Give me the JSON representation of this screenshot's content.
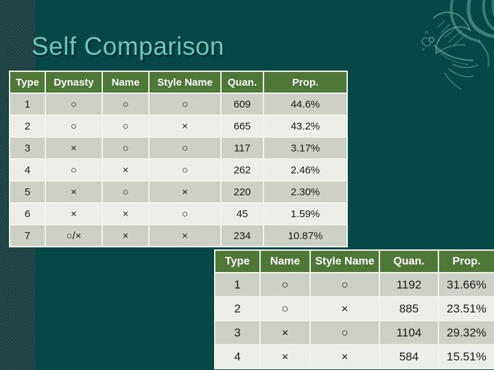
{
  "slide": {
    "title": "Self Comparison",
    "colors": {
      "background": "#054845",
      "left_strip": "#1d4746",
      "title_text": "#6cc7bc",
      "table_header_bg": "#4d7838",
      "table_header_text": "#ffffff",
      "row_dark": "#cdd1c5",
      "row_light": "#edeee8",
      "table_gridline": "#f1f2ec",
      "ornament_stroke": "#6fae9f"
    },
    "icons": {
      "ornament": "phoenix-flourish-icon"
    }
  },
  "table1": {
    "headers": [
      "Type",
      "Dynasty",
      "Name",
      "Style Name",
      "Quan.",
      "Prop."
    ],
    "rows": [
      [
        "1",
        "○",
        "○",
        "○",
        "609",
        "44.6%"
      ],
      [
        "2",
        "○",
        "○",
        "×",
        "665",
        "43.2%"
      ],
      [
        "3",
        "×",
        "○",
        "○",
        "117",
        "3.17%"
      ],
      [
        "4",
        "○",
        "×",
        "○",
        "262",
        "2.46%"
      ],
      [
        "5",
        "×",
        "○",
        "×",
        "220",
        "2.30%"
      ],
      [
        "6",
        "×",
        "×",
        "○",
        "45",
        "1.59%"
      ],
      [
        "7",
        "○/×",
        "×",
        "×",
        "234",
        "10.87%"
      ]
    ]
  },
  "table2": {
    "headers": [
      "Type",
      "Name",
      "Style Name",
      "Quan.",
      "Prop."
    ],
    "rows": [
      [
        "1",
        "○",
        "○",
        "1192",
        "31.66%"
      ],
      [
        "2",
        "○",
        "×",
        "885",
        "23.51%"
      ],
      [
        "3",
        "×",
        "○",
        "1104",
        "29.32%"
      ],
      [
        "4",
        "×",
        "×",
        "584",
        "15.51%"
      ]
    ]
  }
}
